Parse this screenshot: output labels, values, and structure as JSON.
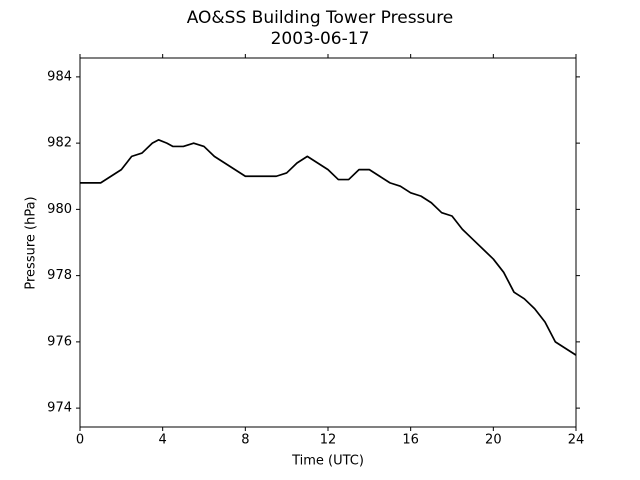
{
  "chart_data": {
    "type": "line",
    "title": "AO&SS Building Tower Pressure",
    "subtitle": "2003-06-17",
    "xlabel": "Time (UTC)",
    "ylabel": "Pressure (hPa)",
    "x": [
      0,
      0.5,
      1,
      1.5,
      2,
      2.5,
      3,
      3.5,
      3.8,
      4.2,
      4.5,
      5,
      5.5,
      6,
      6.5,
      7,
      7.5,
      8,
      8.5,
      9,
      9.5,
      10,
      10.5,
      11,
      11.5,
      12,
      12.5,
      13,
      13.5,
      14,
      14.5,
      15,
      15.5,
      16,
      16.5,
      17,
      17.5,
      18,
      18.5,
      19,
      19.5,
      20,
      20.5,
      21,
      21.5,
      22,
      22.5,
      23,
      23.5,
      24
    ],
    "series": [
      {
        "name": "Pressure",
        "color": "#000000",
        "values": [
          980.8,
          980.8,
          980.8,
          981.0,
          981.2,
          981.6,
          981.7,
          982.0,
          982.1,
          982.0,
          981.9,
          981.9,
          982.0,
          981.9,
          981.6,
          981.4,
          981.2,
          981.0,
          981.0,
          981.0,
          981.0,
          981.1,
          981.4,
          981.6,
          981.4,
          981.2,
          980.9,
          980.9,
          981.2,
          981.2,
          981.0,
          980.8,
          980.7,
          980.5,
          980.4,
          980.2,
          979.9,
          979.8,
          979.4,
          979.1,
          978.8,
          978.5,
          978.1,
          977.5,
          977.3,
          977.0,
          976.6,
          976.0,
          975.8,
          975.6
        ]
      }
    ],
    "xlim": [
      0,
      24
    ],
    "xticks": [
      0,
      4,
      8,
      12,
      16,
      20,
      24
    ],
    "ylim": [
      973.43,
      984.57
    ],
    "yticks": [
      974,
      976,
      978,
      980,
      982,
      984
    ],
    "grid": false
  }
}
